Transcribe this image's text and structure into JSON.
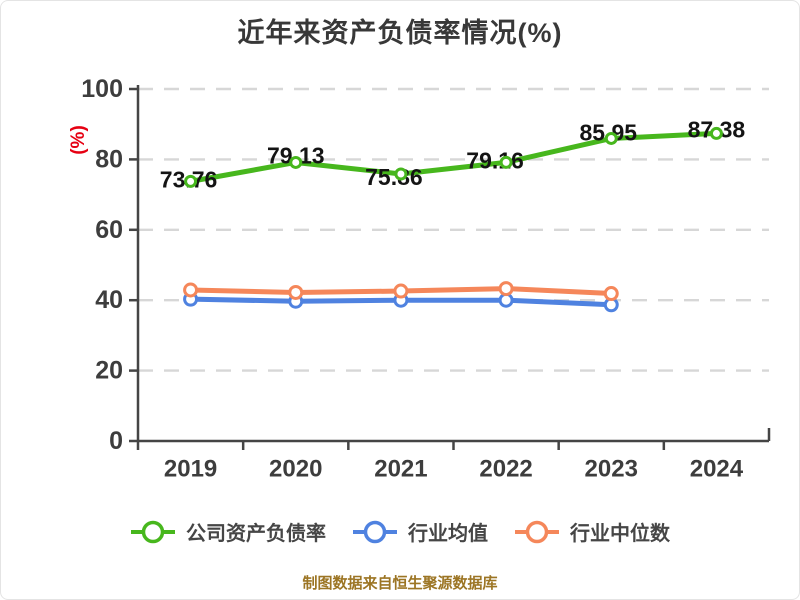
{
  "page": {
    "title": "近年来资产负债率情况(%)",
    "footer_note": "制图数据来自恒生聚源数据库"
  },
  "chart_data": {
    "type": "line",
    "title": "近年来资产负债率情况(%)",
    "ylabel": "(%)",
    "categories": [
      "2019",
      "2020",
      "2021",
      "2022",
      "2023",
      "2024"
    ],
    "series": [
      {
        "name": "公司资产负债率",
        "color": "#47b71d",
        "values": [
          73.76,
          79.13,
          75.86,
          79.16,
          85.95,
          87.38
        ],
        "data_labels": [
          73.76,
          79.13,
          75.86,
          79.16,
          85.95,
          87.38
        ]
      },
      {
        "name": "行业均值",
        "color": "#4f82e0",
        "values": [
          40.3,
          39.7,
          40.0,
          40.0,
          38.7,
          null
        ],
        "data_labels": null
      },
      {
        "name": "行业中位数",
        "color": "#f5875a",
        "values": [
          42.9,
          42.2,
          42.6,
          43.3,
          41.9,
          null
        ],
        "data_labels": null
      }
    ],
    "ylim": [
      0,
      100
    ],
    "yticks": [
      0,
      20,
      40,
      60,
      80,
      100
    ],
    "grid": "dashed-horizontal",
    "legend_position": "bottom",
    "colors": {
      "axis": "#454545",
      "grid": "#d7d7d7",
      "tick_label": "#3d3d3d",
      "data_label": "#141414",
      "ylabel": "#e60012",
      "title": "#383838",
      "footer": "#9c7524",
      "marker_fill": "#ffffff"
    }
  }
}
